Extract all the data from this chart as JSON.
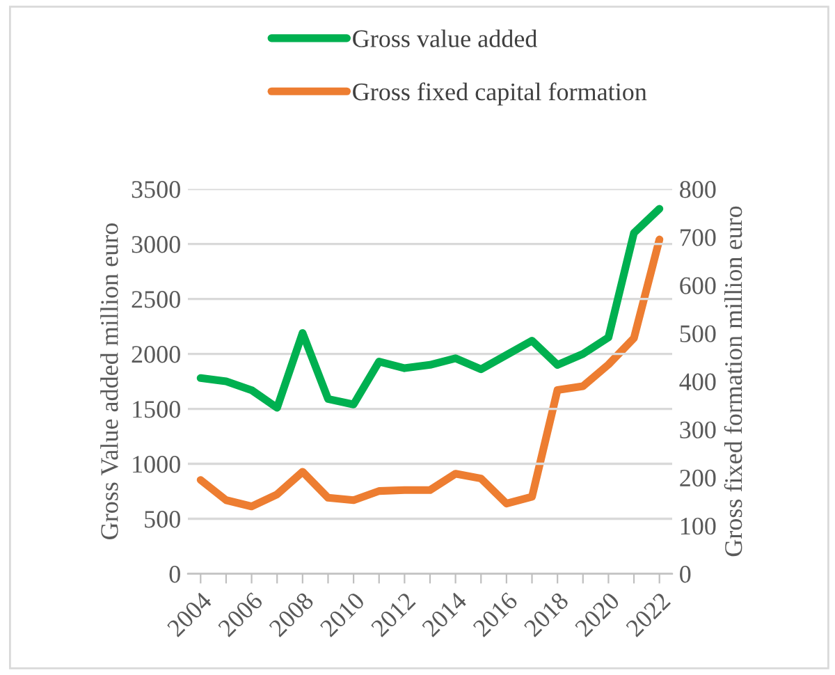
{
  "chart_data": {
    "type": "line",
    "categories": [
      "2004",
      null,
      "2006",
      null,
      "2008",
      null,
      "2010",
      null,
      "2012",
      null,
      "2014",
      null,
      "2016",
      null,
      "2018",
      null,
      "2020",
      null,
      "2022"
    ],
    "series": [
      {
        "name": "Gross value added",
        "color": "#00b050",
        "values": [
          1780,
          1750,
          1670,
          1510,
          2190,
          1590,
          1540,
          1930,
          1870,
          1900,
          1960,
          1860,
          1990,
          2120,
          1900,
          2000,
          2150,
          3100,
          3320
        ]
      },
      {
        "name": "Gross fixed capital formation",
        "color": "#ed7d31",
        "axis": "y2",
        "values": [
          195,
          153,
          140,
          165,
          212,
          158,
          153,
          172,
          174,
          174,
          208,
          198,
          146,
          160,
          382,
          390,
          435,
          490,
          695
        ]
      }
    ],
    "ylabel": "Gross Value added million euro",
    "y2label": "Gross fixed formation million euro",
    "ylim": [
      0,
      3500
    ],
    "yticks": [
      0,
      500,
      1000,
      1500,
      2000,
      2500,
      3000,
      3500
    ],
    "y2lim": [
      0,
      800
    ],
    "y2ticks": [
      0,
      100,
      200,
      300,
      400,
      500,
      600,
      700,
      800
    ],
    "grid": "y",
    "legend": "top",
    "marker": "none",
    "line_style": "solid"
  }
}
